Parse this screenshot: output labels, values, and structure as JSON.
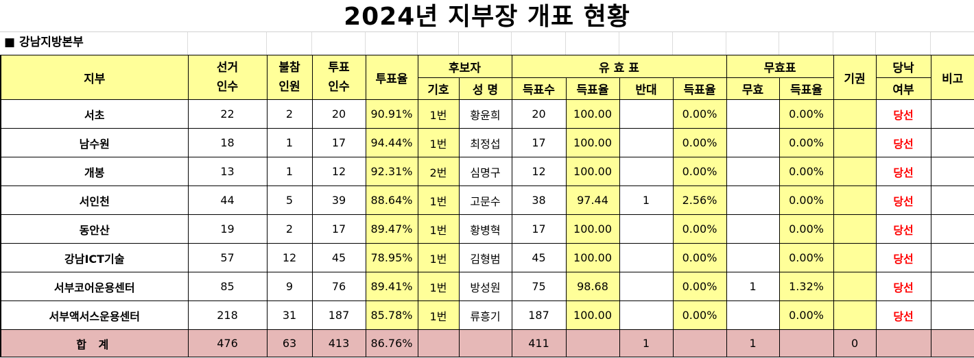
{
  "title": "2024년 지부장 개표 현황",
  "region": "■ 강남지방본부",
  "header": {
    "branch": "지부",
    "eligible_1": "선거",
    "eligible_2": "인수",
    "absent_1": "불참",
    "absent_2": "인원",
    "voted_1": "투표",
    "voted_2": "인수",
    "turnout": "투표율",
    "candidate": "후보자",
    "symbol": "기호",
    "name": "성 명",
    "valid": "유 효 표",
    "votes": "득표수",
    "vote_rate": "득표율",
    "against": "반대",
    "against_rate": "득표율",
    "invalid": "무효표",
    "invalid_count": "무효",
    "invalid_rate": "득표율",
    "abstain": "기권",
    "result_1": "당낙",
    "result_2": "여부",
    "note": "비고"
  },
  "rows": [
    {
      "branch": "서초",
      "eligible": "22",
      "absent": "2",
      "voted": "20",
      "turnout": "90.91%",
      "symbol": "1번",
      "name": "황윤희",
      "votes": "20",
      "rate": "100.00",
      "against": "",
      "against_rate": "0.00%",
      "invalid": "",
      "invalid_rate": "0.00%",
      "abstain": "",
      "result": "당선",
      "note": ""
    },
    {
      "branch": "남수원",
      "eligible": "18",
      "absent": "1",
      "voted": "17",
      "turnout": "94.44%",
      "symbol": "1번",
      "name": "최정섭",
      "votes": "17",
      "rate": "100.00",
      "against": "",
      "against_rate": "0.00%",
      "invalid": "",
      "invalid_rate": "0.00%",
      "abstain": "",
      "result": "당선",
      "note": ""
    },
    {
      "branch": "개봉",
      "eligible": "13",
      "absent": "1",
      "voted": "12",
      "turnout": "92.31%",
      "symbol": "2번",
      "name": "심명구",
      "votes": "12",
      "rate": "100.00",
      "against": "",
      "against_rate": "0.00%",
      "invalid": "",
      "invalid_rate": "0.00%",
      "abstain": "",
      "result": "당선",
      "note": ""
    },
    {
      "branch": "서인천",
      "eligible": "44",
      "absent": "5",
      "voted": "39",
      "turnout": "88.64%",
      "symbol": "1번",
      "name": "고문수",
      "votes": "38",
      "rate": "97.44",
      "against": "1",
      "against_rate": "2.56%",
      "invalid": "",
      "invalid_rate": "0.00%",
      "abstain": "",
      "result": "당선",
      "note": ""
    },
    {
      "branch": "동안산",
      "eligible": "19",
      "absent": "2",
      "voted": "17",
      "turnout": "89.47%",
      "symbol": "1번",
      "name": "황병혁",
      "votes": "17",
      "rate": "100.00",
      "against": "",
      "against_rate": "0.00%",
      "invalid": "",
      "invalid_rate": "0.00%",
      "abstain": "",
      "result": "당선",
      "note": ""
    },
    {
      "branch": "강남ICT기술",
      "eligible": "57",
      "absent": "12",
      "voted": "45",
      "turnout": "78.95%",
      "symbol": "1번",
      "name": "김형범",
      "votes": "45",
      "rate": "100.00",
      "against": "",
      "against_rate": "0.00%",
      "invalid": "",
      "invalid_rate": "0.00%",
      "abstain": "",
      "result": "당선",
      "note": ""
    },
    {
      "branch": "서부코어운용센터",
      "eligible": "85",
      "absent": "9",
      "voted": "76",
      "turnout": "89.41%",
      "symbol": "1번",
      "name": "방성원",
      "votes": "75",
      "rate": "98.68",
      "against": "",
      "against_rate": "0.00%",
      "invalid": "1",
      "invalid_rate": "1.32%",
      "abstain": "",
      "result": "당선",
      "note": ""
    },
    {
      "branch": "서부액서스운용센터",
      "eligible": "218",
      "absent": "31",
      "voted": "187",
      "turnout": "85.78%",
      "symbol": "1번",
      "name": "류흥기",
      "votes": "187",
      "rate": "100.00",
      "against": "",
      "against_rate": "0.00%",
      "invalid": "",
      "invalid_rate": "0.00%",
      "abstain": "",
      "result": "당선",
      "note": ""
    }
  ],
  "total": {
    "label": "합 계",
    "eligible": "476",
    "absent": "63",
    "voted": "413",
    "turnout": "86.76%",
    "votes": "411",
    "against": "1",
    "invalid": "1",
    "abstain": "0"
  }
}
